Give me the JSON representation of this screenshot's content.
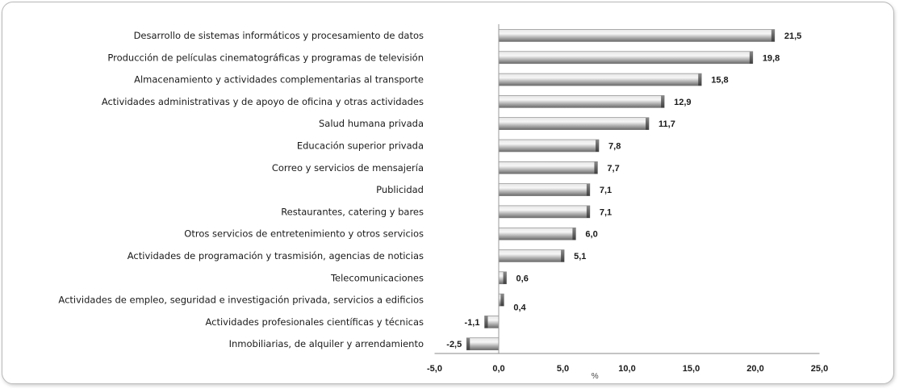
{
  "chart_data": {
    "type": "bar",
    "orientation": "horizontal",
    "categories": [
      "Desarrollo de sistemas informáticos y procesamiento de datos",
      "Producción de películas cinematográficas y programas de televisión",
      "Almacenamiento y actividades complementarias al transporte",
      "Actividades administrativas y de apoyo de oficina y otras actividades",
      "Salud humana privada",
      "Educación superior privada",
      "Correo y servicios de mensajería",
      "Publicidad",
      "Restaurantes, catering y bares",
      "Otros servicios de entretenimiento y otros servicios",
      "Actividades de programación y trasmisión, agencias de noticias",
      "Telecomunicaciones",
      "Actividades de empleo, seguridad e investigación privada, servicios a edificios",
      "Actividades profesionales científicas y técnicas",
      "Inmobiliarias, de alquiler y arrendamiento"
    ],
    "values": [
      21.5,
      19.8,
      15.8,
      12.9,
      11.7,
      7.8,
      7.7,
      7.1,
      7.1,
      6.0,
      5.1,
      0.6,
      0.4,
      -1.1,
      -2.5
    ],
    "value_labels": [
      "21,5",
      "19,8",
      "15,8",
      "12,9",
      "11,7",
      "7,8",
      "7,7",
      "7,1",
      "7,1",
      "6,0",
      "5,1",
      "0,6",
      "0,4",
      "-1,1",
      "-2,5"
    ],
    "xlim": [
      -5,
      25
    ],
    "ticks": [
      -5,
      0,
      5,
      10,
      15,
      20,
      25
    ],
    "tick_labels": [
      "-5,0",
      "0,0",
      "5,0",
      "10,0",
      "15,0",
      "20,0",
      "25,0"
    ],
    "xlabel": "%",
    "title": "",
    "grid": false,
    "bar_color": "#a9a9a9",
    "bar_highlight": "#f4f4f4",
    "bar_shadow": "#595959"
  }
}
